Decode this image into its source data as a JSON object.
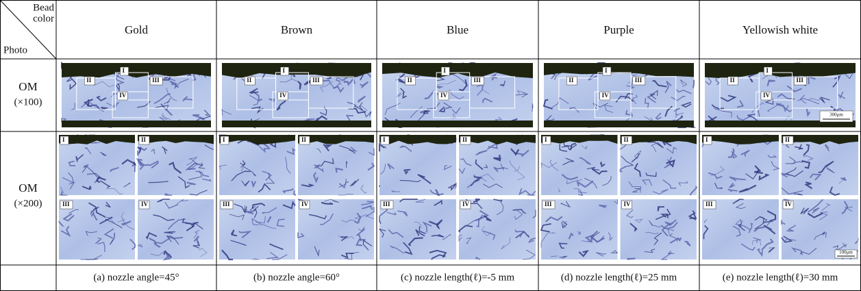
{
  "header": {
    "corner_top": [
      "Bead",
      "color"
    ],
    "corner_bottom": "Photo",
    "columns": [
      "Gold",
      "Brown",
      "Blue",
      "Purple",
      "Yellowish white"
    ]
  },
  "rows": [
    {
      "label": "OM",
      "magnification": "(×100)"
    },
    {
      "label": "OM",
      "magnification": "(×200)"
    }
  ],
  "overview_markers": [
    "I",
    "II",
    "III",
    "IV"
  ],
  "panel_markers": [
    "I",
    "II",
    "III",
    "IV"
  ],
  "scale_bars": [
    "300μm",
    "100μm"
  ],
  "captions": [
    "(a) nozzle angle=45°",
    "(b) nozzle angle=60°",
    "(c) nozzle length(ℓ)=-5 mm",
    "(d) nozzle length(ℓ)=25 mm",
    "(e) nozzle length(ℓ)=30 mm"
  ]
}
